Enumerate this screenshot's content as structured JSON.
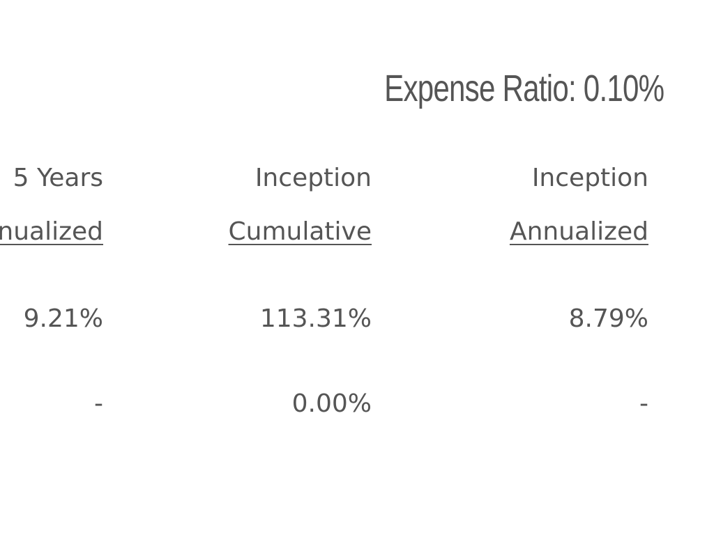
{
  "expense_ratio": "Expense Ratio: 0.10%",
  "table": {
    "headers": [
      [
        "5 Years",
        "Annualized"
      ],
      [
        "Inception",
        "Cumulative"
      ],
      [
        "Inception",
        "Annualized"
      ]
    ],
    "rows": [
      [
        "9.21%",
        "113.31%",
        "8.79%"
      ],
      [
        "-",
        "0.00%",
        "-"
      ]
    ]
  }
}
